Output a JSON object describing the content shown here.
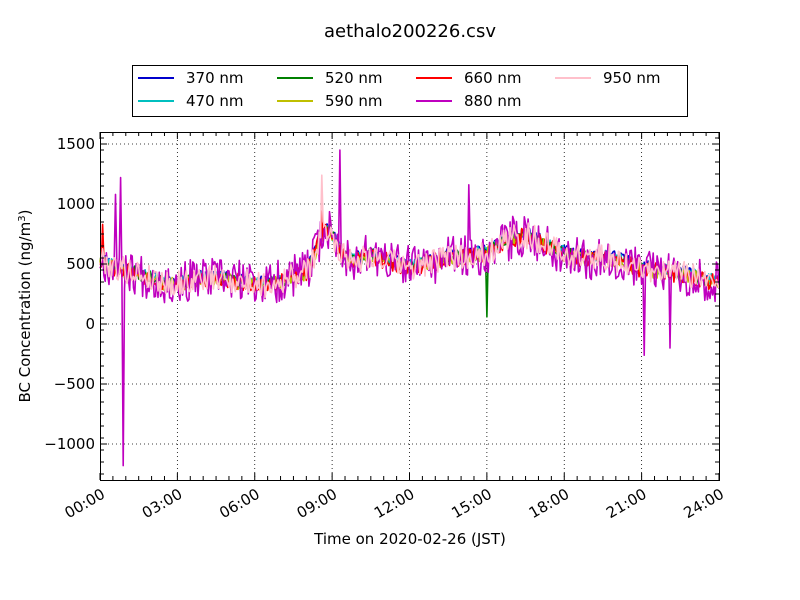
{
  "chart_data": {
    "type": "line",
    "title": "aethalo200226.csv",
    "xlabel": "Time on 2020-02-26 (JST)",
    "ylabel": "BC Concentration (ng/m",
    "ylabel_sup": "3",
    "ylabel_suffix": ")",
    "xlim": [
      0,
      24
    ],
    "ylim": [
      -1300,
      1600
    ],
    "x_ticks": [
      0,
      3,
      6,
      9,
      12,
      15,
      18,
      21,
      24
    ],
    "x_tick_labels": [
      "00:00",
      "03:00",
      "06:00",
      "09:00",
      "12:00",
      "15:00",
      "18:00",
      "21:00",
      "24:00"
    ],
    "y_ticks": [
      -1000,
      -500,
      0,
      500,
      1000,
      1500
    ],
    "y_tick_labels": [
      "−1000",
      "−500",
      "0",
      "500",
      "1000",
      "1500"
    ],
    "grid": true,
    "legend_position": "top",
    "anchors": [
      [
        0.0,
        550
      ],
      [
        0.5,
        480
      ],
      [
        1.0,
        450
      ],
      [
        1.5,
        420
      ],
      [
        2.0,
        380
      ],
      [
        2.5,
        350
      ],
      [
        3.0,
        330
      ],
      [
        3.5,
        360
      ],
      [
        4.0,
        380
      ],
      [
        4.5,
        380
      ],
      [
        5.0,
        370
      ],
      [
        5.5,
        350
      ],
      [
        6.0,
        340
      ],
      [
        6.5,
        330
      ],
      [
        7.0,
        360
      ],
      [
        7.5,
        400
      ],
      [
        8.0,
        430
      ],
      [
        8.3,
        560
      ],
      [
        8.6,
        760
      ],
      [
        8.9,
        780
      ],
      [
        9.2,
        650
      ],
      [
        9.5,
        560
      ],
      [
        10.0,
        540
      ],
      [
        10.5,
        580
      ],
      [
        11.0,
        540
      ],
      [
        11.5,
        500
      ],
      [
        12.0,
        470
      ],
      [
        12.5,
        500
      ],
      [
        13.0,
        520
      ],
      [
        13.5,
        560
      ],
      [
        14.0,
        560
      ],
      [
        14.5,
        570
      ],
      [
        15.0,
        600
      ],
      [
        15.5,
        660
      ],
      [
        16.0,
        720
      ],
      [
        16.5,
        740
      ],
      [
        17.0,
        700
      ],
      [
        17.5,
        640
      ],
      [
        18.0,
        590
      ],
      [
        18.5,
        560
      ],
      [
        19.0,
        550
      ],
      [
        19.5,
        560
      ],
      [
        20.0,
        540
      ],
      [
        20.5,
        500
      ],
      [
        21.0,
        460
      ],
      [
        21.5,
        450
      ],
      [
        22.0,
        430
      ],
      [
        22.5,
        420
      ],
      [
        23.0,
        400
      ],
      [
        23.5,
        370
      ],
      [
        24.0,
        330
      ]
    ],
    "series": [
      {
        "name": "370 nm",
        "color": "#0000cc",
        "amp": 45,
        "seed": 11,
        "offset": 25,
        "spikes": []
      },
      {
        "name": "470 nm",
        "color": "#00bfbf",
        "amp": 50,
        "seed": 23,
        "offset": 15,
        "spikes": []
      },
      {
        "name": "520 nm",
        "color": "#008000",
        "amp": 55,
        "seed": 37,
        "offset": 0,
        "spikes": [
          [
            15.0,
            60
          ]
        ]
      },
      {
        "name": "590 nm",
        "color": "#bfbf00",
        "amp": 60,
        "seed": 41,
        "offset": -10,
        "spikes": []
      },
      {
        "name": "660 nm",
        "color": "#ff0000",
        "amp": 75,
        "seed": 53,
        "offset": -5,
        "spikes": [
          [
            0.1,
            830
          ],
          [
            8.6,
            940
          ]
        ]
      },
      {
        "name": "880 nm",
        "color": "#bf00bf",
        "amp": 180,
        "seed": 67,
        "offset": 0,
        "spikes": [
          [
            0.6,
            1080
          ],
          [
            0.8,
            1220
          ],
          [
            0.9,
            -1180
          ],
          [
            9.3,
            1450
          ],
          [
            14.3,
            1160
          ],
          [
            21.1,
            -260
          ],
          [
            22.1,
            -200
          ]
        ]
      },
      {
        "name": "950 nm",
        "color": "#ffc0cb",
        "amp": 110,
        "seed": 79,
        "offset": 0,
        "spikes": [
          [
            8.6,
            1240
          ]
        ]
      }
    ]
  }
}
